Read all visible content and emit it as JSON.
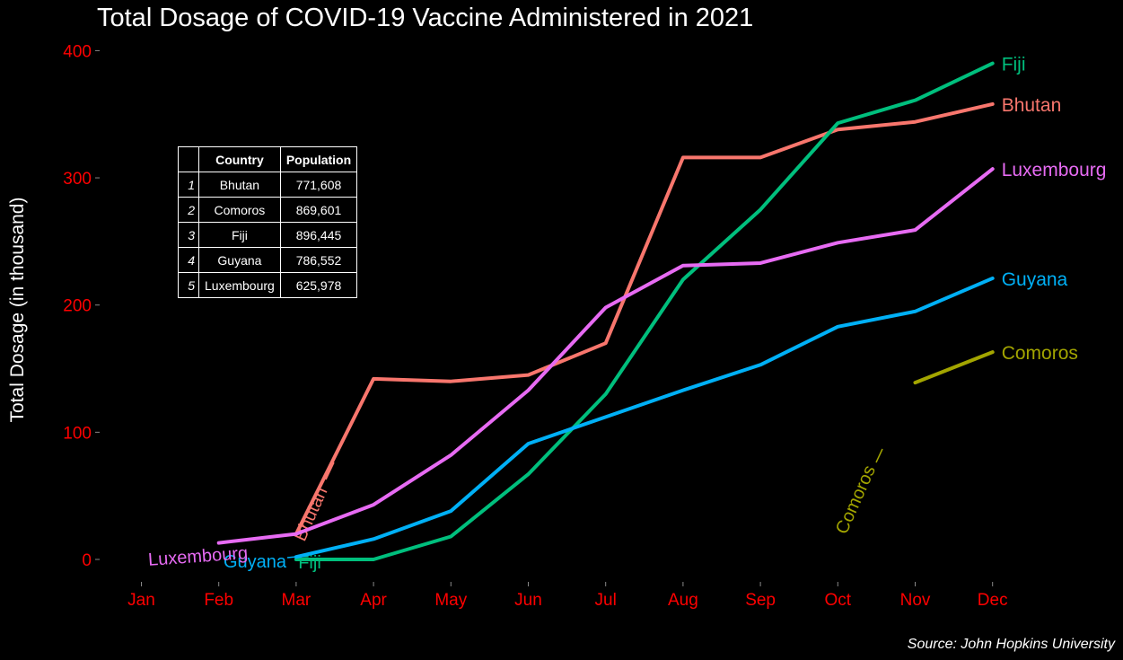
{
  "chart_data": {
    "type": "line",
    "title": "Total Dosage of COVID-19 Vaccine Administered in 2021",
    "xlabel": "",
    "ylabel": "Total Dosage (in thousand)",
    "caption": "Source: John Hopkins University",
    "categories": [
      "Jan",
      "Feb",
      "Mar",
      "Apr",
      "May",
      "Jun",
      "Jul",
      "Aug",
      "Sep",
      "Oct",
      "Nov",
      "Dec"
    ],
    "ylim": [
      -15,
      405
    ],
    "yticks": [
      0,
      100,
      200,
      300,
      400
    ],
    "grid": false,
    "legend": "none (direct labels)",
    "tick_color": "#ff0000",
    "series": [
      {
        "name": "Bhutan",
        "color": "#f8766d",
        "values": [
          null,
          null,
          20,
          142,
          140,
          145,
          170,
          316,
          316,
          338,
          344,
          358
        ],
        "start_label": {
          "text": "Bhutan"
        }
      },
      {
        "name": "Comoros",
        "color": "#a3a500",
        "values": [
          null,
          null,
          null,
          null,
          null,
          null,
          null,
          null,
          null,
          null,
          139,
          163
        ],
        "start_label": {
          "text": "Comoros"
        }
      },
      {
        "name": "Fiji",
        "color": "#00bf7d",
        "values": [
          null,
          null,
          0,
          0,
          18,
          67,
          130,
          220,
          275,
          343,
          361,
          390
        ],
        "start_label": {
          "text": "Fiji"
        }
      },
      {
        "name": "Guyana",
        "color": "#00b0f6",
        "values": [
          null,
          null,
          2,
          16,
          38,
          91,
          112,
          133,
          153,
          183,
          195,
          221
        ],
        "start_label": {
          "text": "Guyana"
        }
      },
      {
        "name": "Luxembourg",
        "color": "#e76bf3",
        "values": [
          null,
          13,
          20,
          43,
          82,
          133,
          198,
          231,
          233,
          249,
          259,
          307
        ],
        "start_label": {
          "text": "Luxembourg"
        }
      }
    ]
  },
  "table": {
    "headers": [
      "",
      "Country",
      "Population"
    ],
    "rows": [
      {
        "idx": "1",
        "country": "Bhutan",
        "population": "771,608"
      },
      {
        "idx": "2",
        "country": "Comoros",
        "population": "869,601"
      },
      {
        "idx": "3",
        "country": "Fiji",
        "population": "896,445"
      },
      {
        "idx": "4",
        "country": "Guyana",
        "population": "786,552"
      },
      {
        "idx": "5",
        "country": "Luxembourg",
        "population": "625,978"
      }
    ]
  }
}
